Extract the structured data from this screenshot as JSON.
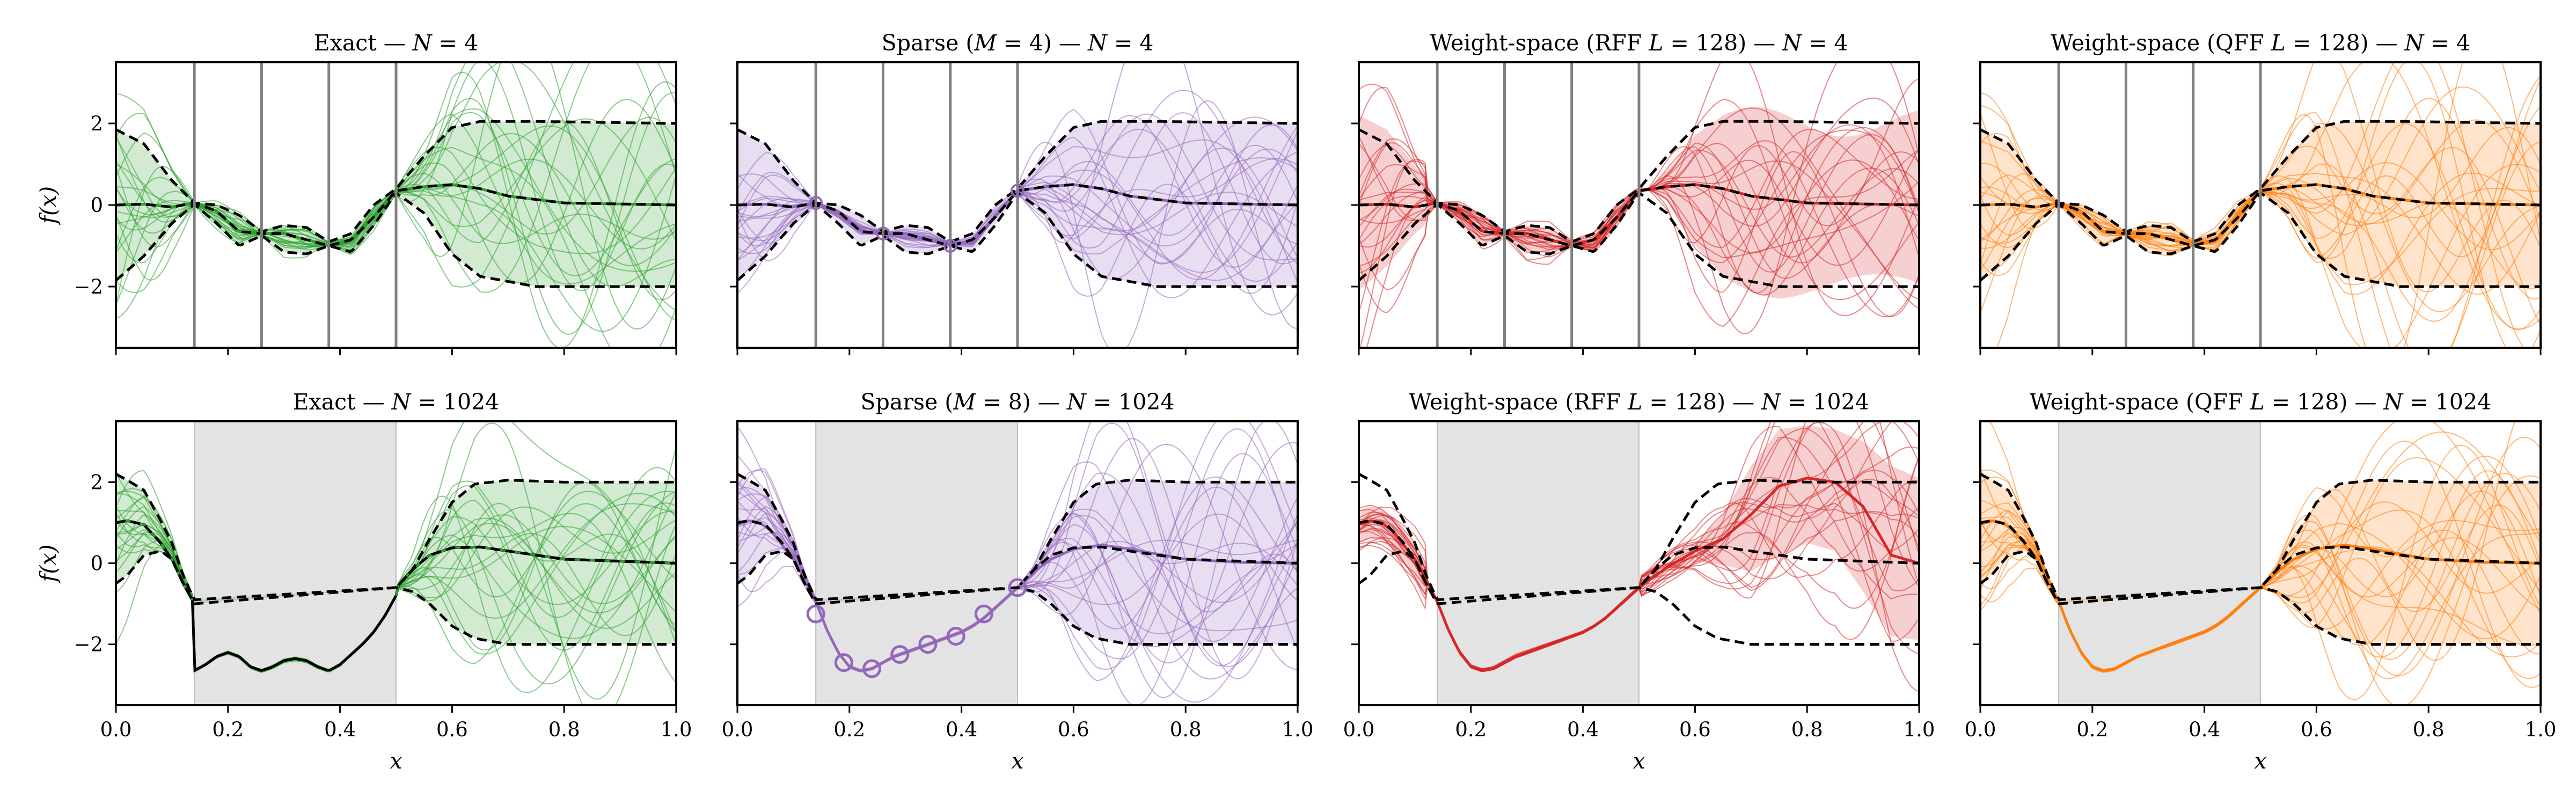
{
  "figure": {
    "colors": {
      "exact": "#2ca02c",
      "sparse": "#9467bd",
      "rff": "#d62728",
      "qff": "#ff7f0e",
      "bound": "#000000",
      "obs_line": "#808080",
      "shade": "#e3e3e3"
    }
  },
  "chart_data": [
    {
      "type": "line",
      "title": "Exact — N = 4",
      "title_parts": [
        "Exact — ",
        "N",
        " = 4"
      ],
      "method": "exact",
      "row": 0,
      "xlabel": "",
      "ylabel": "f(x)",
      "xlim": [
        0,
        1
      ],
      "ylim": [
        -3.5,
        3.5
      ],
      "xticks": [
        0.0,
        0.2,
        0.4,
        0.6,
        0.8,
        1.0
      ],
      "yticks": [
        -2,
        0,
        2
      ],
      "x_tick_labels_visible": false,
      "y_tick_labels_visible": true,
      "observations_x": [
        0.14,
        0.26,
        0.38,
        0.5
      ],
      "observations_y": [
        0.05,
        -0.7,
        -1.0,
        0.35
      ],
      "prior_std_band": 2
    },
    {
      "type": "line",
      "title": "Sparse (M = 4) — N = 4",
      "title_parts": [
        "Sparse (",
        "M",
        " = 4) — ",
        "N",
        " = 4"
      ],
      "method": "sparse",
      "row": 0,
      "xlabel": "",
      "ylabel": "",
      "xlim": [
        0,
        1
      ],
      "ylim": [
        -3.5,
        3.5
      ],
      "xticks": [
        0.0,
        0.2,
        0.4,
        0.6,
        0.8,
        1.0
      ],
      "yticks": [
        -2,
        0,
        2
      ],
      "x_tick_labels_visible": false,
      "y_tick_labels_visible": false,
      "observations_x": [
        0.14,
        0.26,
        0.38,
        0.5
      ],
      "observations_y": [
        0.05,
        -0.7,
        -1.0,
        0.35
      ],
      "inducing_x": [
        0.14,
        0.26,
        0.38,
        0.5
      ]
    },
    {
      "type": "line",
      "title": "Weight-space (RFF L = 128) — N = 4",
      "title_parts": [
        "Weight-space (RFF ",
        "L",
        " = 128) — ",
        "N",
        " = 4"
      ],
      "method": "rff",
      "row": 0,
      "xlabel": "",
      "ylabel": "",
      "xlim": [
        0,
        1
      ],
      "ylim": [
        -3.5,
        3.5
      ],
      "xticks": [
        0.0,
        0.2,
        0.4,
        0.6,
        0.8,
        1.0
      ],
      "yticks": [
        -2,
        0,
        2
      ],
      "x_tick_labels_visible": false,
      "y_tick_labels_visible": false,
      "observations_x": [
        0.14,
        0.26,
        0.38,
        0.5
      ],
      "observations_y": [
        0.05,
        -0.7,
        -1.0,
        0.35
      ]
    },
    {
      "type": "line",
      "title": "Weight-space (QFF L = 128) — N = 4",
      "title_parts": [
        "Weight-space (QFF ",
        "L",
        " = 128) — ",
        "N",
        " = 4"
      ],
      "method": "qff",
      "row": 0,
      "xlabel": "",
      "ylabel": "",
      "xlim": [
        0,
        1
      ],
      "ylim": [
        -3.5,
        3.5
      ],
      "xticks": [
        0.0,
        0.2,
        0.4,
        0.6,
        0.8,
        1.0
      ],
      "yticks": [
        -2,
        0,
        2
      ],
      "x_tick_labels_visible": false,
      "y_tick_labels_visible": false,
      "observations_x": [
        0.14,
        0.26,
        0.38,
        0.5
      ],
      "observations_y": [
        0.05,
        -0.7,
        -1.0,
        0.35
      ]
    },
    {
      "type": "line",
      "title": "Exact — N = 1024",
      "title_parts": [
        "Exact — ",
        "N",
        " = 1024"
      ],
      "method": "exact",
      "row": 1,
      "xlabel": "x",
      "ylabel": "f(x)",
      "xlim": [
        0,
        1
      ],
      "ylim": [
        -3.5,
        3.5
      ],
      "xticks": [
        0.0,
        0.2,
        0.4,
        0.6,
        0.8,
        1.0
      ],
      "yticks": [
        -2,
        0,
        2
      ],
      "x_tick_labels_visible": true,
      "y_tick_labels_visible": true,
      "observed_region": [
        0.14,
        0.5
      ],
      "posterior_mean_in_region": [
        [
          0.14,
          -0.2
        ],
        [
          0.18,
          -1.9
        ],
        [
          0.22,
          -2.65
        ],
        [
          0.26,
          -2.45
        ],
        [
          0.3,
          -2.15
        ],
        [
          0.34,
          -2.0
        ],
        [
          0.38,
          -1.85
        ],
        [
          0.42,
          -1.6
        ],
        [
          0.46,
          -1.2
        ],
        [
          0.5,
          -0.6
        ]
      ]
    },
    {
      "type": "line",
      "title": "Sparse (M = 8) — N = 1024",
      "title_parts": [
        "Sparse (",
        "M",
        " = 8) — ",
        "N",
        " = 1024"
      ],
      "method": "sparse",
      "row": 1,
      "xlabel": "x",
      "ylabel": "",
      "xlim": [
        0,
        1
      ],
      "ylim": [
        -3.5,
        3.5
      ],
      "xticks": [
        0.0,
        0.2,
        0.4,
        0.6,
        0.8,
        1.0
      ],
      "yticks": [
        -2,
        0,
        2
      ],
      "x_tick_labels_visible": true,
      "y_tick_labels_visible": false,
      "observed_region": [
        0.14,
        0.5
      ],
      "inducing_x": [
        0.14,
        0.19,
        0.24,
        0.29,
        0.34,
        0.39,
        0.44,
        0.5
      ],
      "inducing_y": [
        -1.25,
        -2.45,
        -2.6,
        -2.25,
        -2.0,
        -1.8,
        -1.25,
        -0.6
      ]
    },
    {
      "type": "line",
      "title": "Weight-space (RFF L = 128) — N = 1024",
      "title_parts": [
        "Weight-space (RFF ",
        "L",
        " = 128) — ",
        "N",
        " = 1024"
      ],
      "method": "rff",
      "row": 1,
      "xlabel": "x",
      "ylabel": "",
      "xlim": [
        0,
        1
      ],
      "ylim": [
        -3.5,
        3.5
      ],
      "xticks": [
        0.0,
        0.2,
        0.4,
        0.6,
        0.8,
        1.0
      ],
      "yticks": [
        -2,
        0,
        2
      ],
      "x_tick_labels_visible": true,
      "y_tick_labels_visible": false,
      "observed_region": [
        0.14,
        0.5
      ]
    },
    {
      "type": "line",
      "title": "Weight-space (QFF L = 128) — N = 1024",
      "title_parts": [
        "Weight-space (QFF ",
        "L",
        " = 128) — ",
        "N",
        " = 1024"
      ],
      "method": "qff",
      "row": 1,
      "xlabel": "x",
      "ylabel": "",
      "xlim": [
        0,
        1
      ],
      "ylim": [
        -3.5,
        3.5
      ],
      "xticks": [
        0.0,
        0.2,
        0.4,
        0.6,
        0.8,
        1.0
      ],
      "yticks": [
        -2,
        0,
        2
      ],
      "x_tick_labels_visible": true,
      "y_tick_labels_visible": false,
      "observed_region": [
        0.14,
        0.5
      ]
    }
  ]
}
